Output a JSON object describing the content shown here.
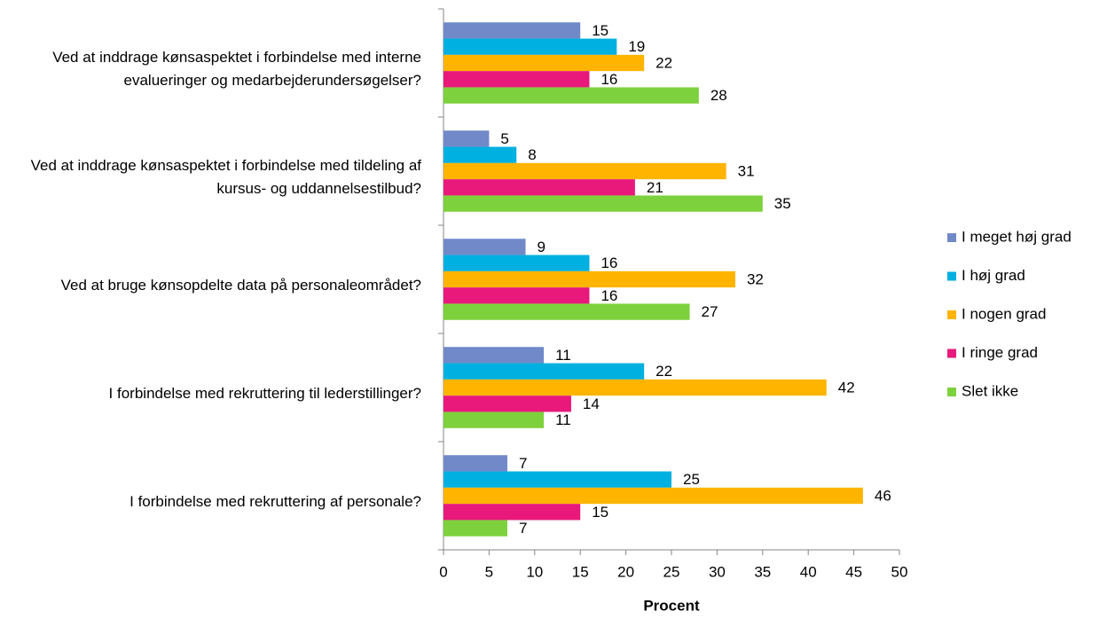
{
  "chart_data": {
    "type": "bar",
    "orientation": "horizontal",
    "categories": [
      "Ved at inddrage kønsaspektet i forbindelse med interne evalueringer og medarbejderundersøgelser?",
      "Ved at inddrage kønsaspektet i forbindelse med tildeling af kursus- og uddannelsestilbud?",
      "Ved at bruge kønsopdelte data på personaleområdet?",
      "I forbindelse med rekruttering til lederstillinger?",
      "I forbindelse med rekruttering af personale?"
    ],
    "series": [
      {
        "name": "I meget høj grad",
        "color": "#7189c9",
        "values": [
          15,
          5,
          9,
          11,
          7
        ]
      },
      {
        "name": "I høj grad",
        "color": "#00b0e0",
        "values": [
          19,
          8,
          16,
          22,
          25
        ]
      },
      {
        "name": "I nogen grad",
        "color": "#ffb400",
        "values": [
          22,
          31,
          32,
          42,
          46
        ]
      },
      {
        "name": "I ringe grad",
        "color": "#e8197a",
        "values": [
          16,
          21,
          16,
          14,
          15
        ]
      },
      {
        "name": "Slet ikke",
        "color": "#7dd13c",
        "values": [
          28,
          35,
          27,
          11,
          7
        ]
      }
    ],
    "xlabel": "Procent",
    "xlim": [
      0,
      50
    ],
    "xticks": [
      0,
      5,
      10,
      15,
      20,
      25,
      30,
      35,
      40,
      45,
      50
    ],
    "legend": "right"
  }
}
